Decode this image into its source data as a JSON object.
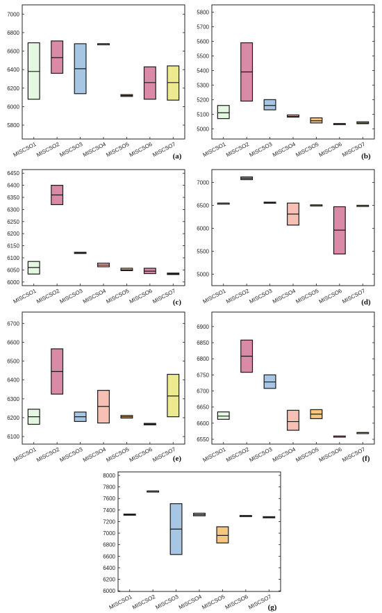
{
  "chart_data": [
    {
      "type": "box",
      "panel_label": "(a)",
      "categories": [
        "MISCSO1",
        "MISCSO2",
        "MISCSO3",
        "MISCSO4",
        "MISCSO5",
        "MISCSO6",
        "MISCSO7"
      ],
      "ylim": [
        5650,
        7100
      ],
      "yticks": [
        5800,
        6000,
        6200,
        6400,
        6600,
        6800,
        7000
      ],
      "boxes": [
        {
          "q1": 6080,
          "median": 6380,
          "q3": 6690
        },
        {
          "q1": 6360,
          "median": 6530,
          "q3": 6710
        },
        {
          "q1": 6140,
          "median": 6410,
          "q3": 6680
        },
        {
          "q1": 6680,
          "median": 6680,
          "q3": 6680
        },
        {
          "q1": 6110,
          "median": 6120,
          "q3": 6130
        },
        {
          "q1": 6080,
          "median": 6260,
          "q3": 6430
        },
        {
          "q1": 6070,
          "median": 6260,
          "q3": 6440
        }
      ]
    },
    {
      "type": "box",
      "panel_label": "(b)",
      "categories": [
        "MISCSO1",
        "MISCSO2",
        "MISCSO3",
        "MISCSO4",
        "MISCSO5",
        "MISCSO6",
        "MISCSO7"
      ],
      "ylim": [
        4930,
        5850
      ],
      "yticks": [
        5000,
        5100,
        5200,
        5300,
        5400,
        5500,
        5600,
        5700,
        5800
      ],
      "boxes": [
        {
          "q1": 5070,
          "median": 5110,
          "q3": 5160
        },
        {
          "q1": 5190,
          "median": 5390,
          "q3": 5590
        },
        {
          "q1": 5130,
          "median": 5160,
          "q3": 5200
        },
        {
          "q1": 5080,
          "median": 5085,
          "q3": 5095
        },
        {
          "q1": 5040,
          "median": 5055,
          "q3": 5075
        },
        {
          "q1": 5036,
          "median": 5036,
          "q3": 5036
        },
        {
          "q1": 5035,
          "median": 5040,
          "q3": 5048
        }
      ]
    },
    {
      "type": "box",
      "panel_label": "(c)",
      "categories": [
        "MISCSO1",
        "MISCSO2",
        "MISCSO3",
        "MISCSO4",
        "MISCSO5",
        "MISCSO6",
        "MISCSO7"
      ],
      "ylim": [
        5985,
        6465
      ],
      "yticks": [
        6000,
        6050,
        6100,
        6150,
        6200,
        6250,
        6300,
        6350,
        6400,
        6450
      ],
      "boxes": [
        {
          "q1": 6033,
          "median": 6060,
          "q3": 6085
        },
        {
          "q1": 6320,
          "median": 6360,
          "q3": 6400
        },
        {
          "q1": 6118,
          "median": 6120,
          "q3": 6123
        },
        {
          "q1": 6063,
          "median": 6070,
          "q3": 6078
        },
        {
          "q1": 6047,
          "median": 6050,
          "q3": 6057
        },
        {
          "q1": 6035,
          "median": 6045,
          "q3": 6057
        },
        {
          "q1": 6031,
          "median": 6034,
          "q3": 6037
        }
      ]
    },
    {
      "type": "box",
      "panel_label": "(d)",
      "categories": [
        "MISCSO1",
        "MISCSO2",
        "MISCSO3",
        "MISCSO4",
        "MISCSO5",
        "MISCSO6",
        "MISCSO7"
      ],
      "ylim": [
        4750,
        7280
      ],
      "yticks": [
        5000,
        5500,
        6000,
        6500,
        7000
      ],
      "boxes": [
        {
          "q1": 6550,
          "median": 6550,
          "q3": 6550
        },
        {
          "q1": 7060,
          "median": 7090,
          "q3": 7120
        },
        {
          "q1": 6550,
          "median": 6560,
          "q3": 6570
        },
        {
          "q1": 6070,
          "median": 6310,
          "q3": 6550
        },
        {
          "q1": 6510,
          "median": 6510,
          "q3": 6510
        },
        {
          "q1": 5440,
          "median": 5960,
          "q3": 6470
        },
        {
          "q1": 6500,
          "median": 6500,
          "q3": 6500
        }
      ]
    },
    {
      "type": "box",
      "panel_label": "(e)",
      "categories": [
        "MISCSO1",
        "MISCSO2",
        "MISCSO3",
        "MISCSO4",
        "MISCSO5",
        "MISCSO6",
        "MISCSO7"
      ],
      "ylim": [
        6060,
        6760
      ],
      "yticks": [
        6100,
        6200,
        6300,
        6400,
        6500,
        6600,
        6700
      ],
      "boxes": [
        {
          "q1": 6165,
          "median": 6205,
          "q3": 6245
        },
        {
          "q1": 6325,
          "median": 6445,
          "q3": 6565
        },
        {
          "q1": 6180,
          "median": 6205,
          "q3": 6230
        },
        {
          "q1": 6172,
          "median": 6260,
          "q3": 6345
        },
        {
          "q1": 6198,
          "median": 6205,
          "q3": 6212
        },
        {
          "q1": 6162,
          "median": 6166,
          "q3": 6170
        },
        {
          "q1": 6205,
          "median": 6315,
          "q3": 6430
        }
      ]
    },
    {
      "type": "box",
      "panel_label": "(f)",
      "categories": [
        "MISCSO1",
        "MISCSO2",
        "MISCSO3",
        "MISCSO4",
        "MISCSO5",
        "MISCSO6",
        "MISCSO7"
      ],
      "ylim": [
        6535,
        6945
      ],
      "yticks": [
        6550,
        6600,
        6650,
        6700,
        6750,
        6800,
        6850,
        6900
      ],
      "boxes": [
        {
          "q1": 6612,
          "median": 6622,
          "q3": 6635
        },
        {
          "q1": 6758,
          "median": 6808,
          "q3": 6858
        },
        {
          "q1": 6708,
          "median": 6728,
          "q3": 6750
        },
        {
          "q1": 6578,
          "median": 6605,
          "q3": 6640
        },
        {
          "q1": 6614,
          "median": 6628,
          "q3": 6642
        },
        {
          "q1": 6560,
          "median": 6560,
          "q3": 6560
        },
        {
          "q1": 6571,
          "median": 6571,
          "q3": 6571
        }
      ]
    },
    {
      "type": "box",
      "panel_label": "(g)",
      "categories": [
        "MISCSO1",
        "MISCSO2",
        "MISCSO3",
        "MISCSO4",
        "MISCSO5",
        "MISCSO6",
        "MISCSO7"
      ],
      "ylim": [
        5990,
        8060
      ],
      "yticks": [
        6000,
        6200,
        6400,
        6600,
        6800,
        7000,
        7200,
        7400,
        7600,
        7800,
        8000
      ],
      "boxes": [
        {
          "q1": 7310,
          "median": 7320,
          "q3": 7330
        },
        {
          "q1": 7730,
          "median": 7730,
          "q3": 7730
        },
        {
          "q1": 6630,
          "median": 7070,
          "q3": 7510
        },
        {
          "q1": 7300,
          "median": 7320,
          "q3": 7345
        },
        {
          "q1": 6830,
          "median": 6960,
          "q3": 7110
        },
        {
          "q1": 7305,
          "median": 7305,
          "q3": 7305
        },
        {
          "q1": 7265,
          "median": 7275,
          "q3": 7285
        }
      ]
    }
  ],
  "colors": [
    "#e4f7e0",
    "#d98aa6",
    "#a7c6e4",
    "#f7c0b4",
    "#f4c782",
    "#d98aa6",
    "#ece98e"
  ]
}
